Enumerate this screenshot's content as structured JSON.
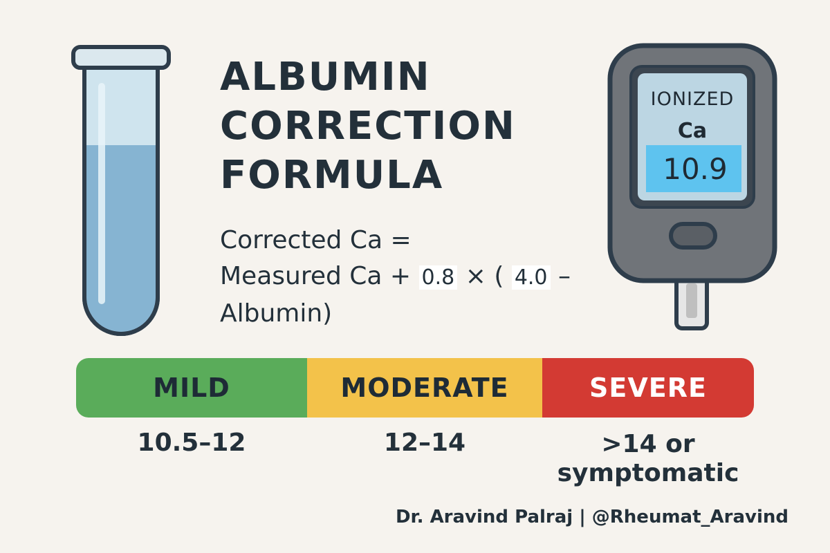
{
  "title": {
    "line1": "ALBUMIN",
    "line2": "CORRECTION",
    "line3": "FORMULA"
  },
  "formula": {
    "line1": "Corrected Ca =",
    "line2_prefix": "Measured Ca + ",
    "coefficient": "0.8",
    "operator": " × ( ",
    "reference": "4.0",
    "minus": " –",
    "line3": "Albumin)"
  },
  "meter": {
    "label_line1": "IONIZED",
    "label_line2": "Ca",
    "reading": "10.9"
  },
  "severity": [
    {
      "label": "MILD",
      "range": "10.5–12",
      "color": "#5aac5a"
    },
    {
      "label": "MODERATE",
      "range": "12–14",
      "color": "#f3c24a"
    },
    {
      "label": "SEVERE",
      "range_line1": ">14 or",
      "range_line2": "symptomatic",
      "color": "#d33a33"
    }
  ],
  "credit": "Dr. Aravind Palraj | @Rheumat_Aravind"
}
